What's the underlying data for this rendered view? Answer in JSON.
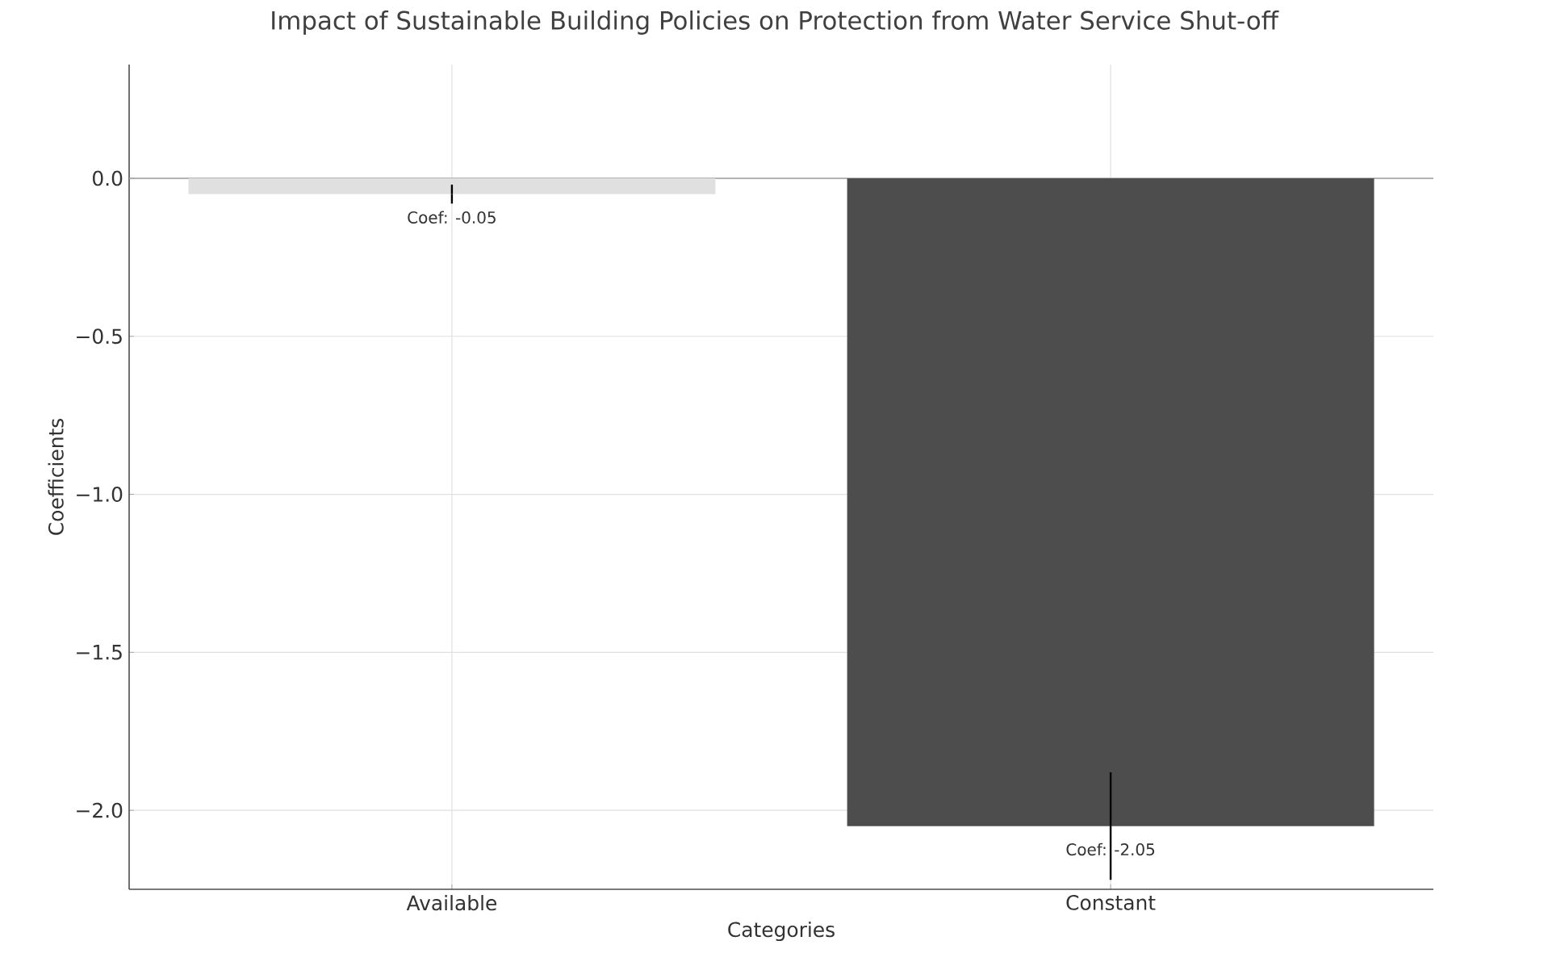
{
  "chart_data": {
    "type": "bar",
    "title": "Impact of Sustainable Building Policies on Protection from Water Service Shut-off",
    "xlabel": "Categories",
    "ylabel": "Coefficients",
    "categories": [
      "Available",
      "Constant"
    ],
    "values": [
      -0.05,
      -2.05
    ],
    "colors": [
      "#e0e0e0",
      "#4d4d4d"
    ],
    "errors": [
      0.03,
      0.17
    ],
    "value_labels": [
      "Coef: -0.05",
      "Coef: -2.05"
    ],
    "ylim": [
      -2.25,
      0.36
    ],
    "yticks": [
      {
        "value": -2.0,
        "label": "−2.0"
      },
      {
        "value": -1.5,
        "label": "−1.5"
      },
      {
        "value": -1.0,
        "label": "−1.0"
      },
      {
        "value": -0.5,
        "label": "−0.5"
      },
      {
        "value": 0.0,
        "label": "0.0"
      }
    ],
    "ref_lines": [
      {
        "axis": "y",
        "value": 0,
        "color": "#a0a0a0"
      }
    ],
    "grid": true
  }
}
